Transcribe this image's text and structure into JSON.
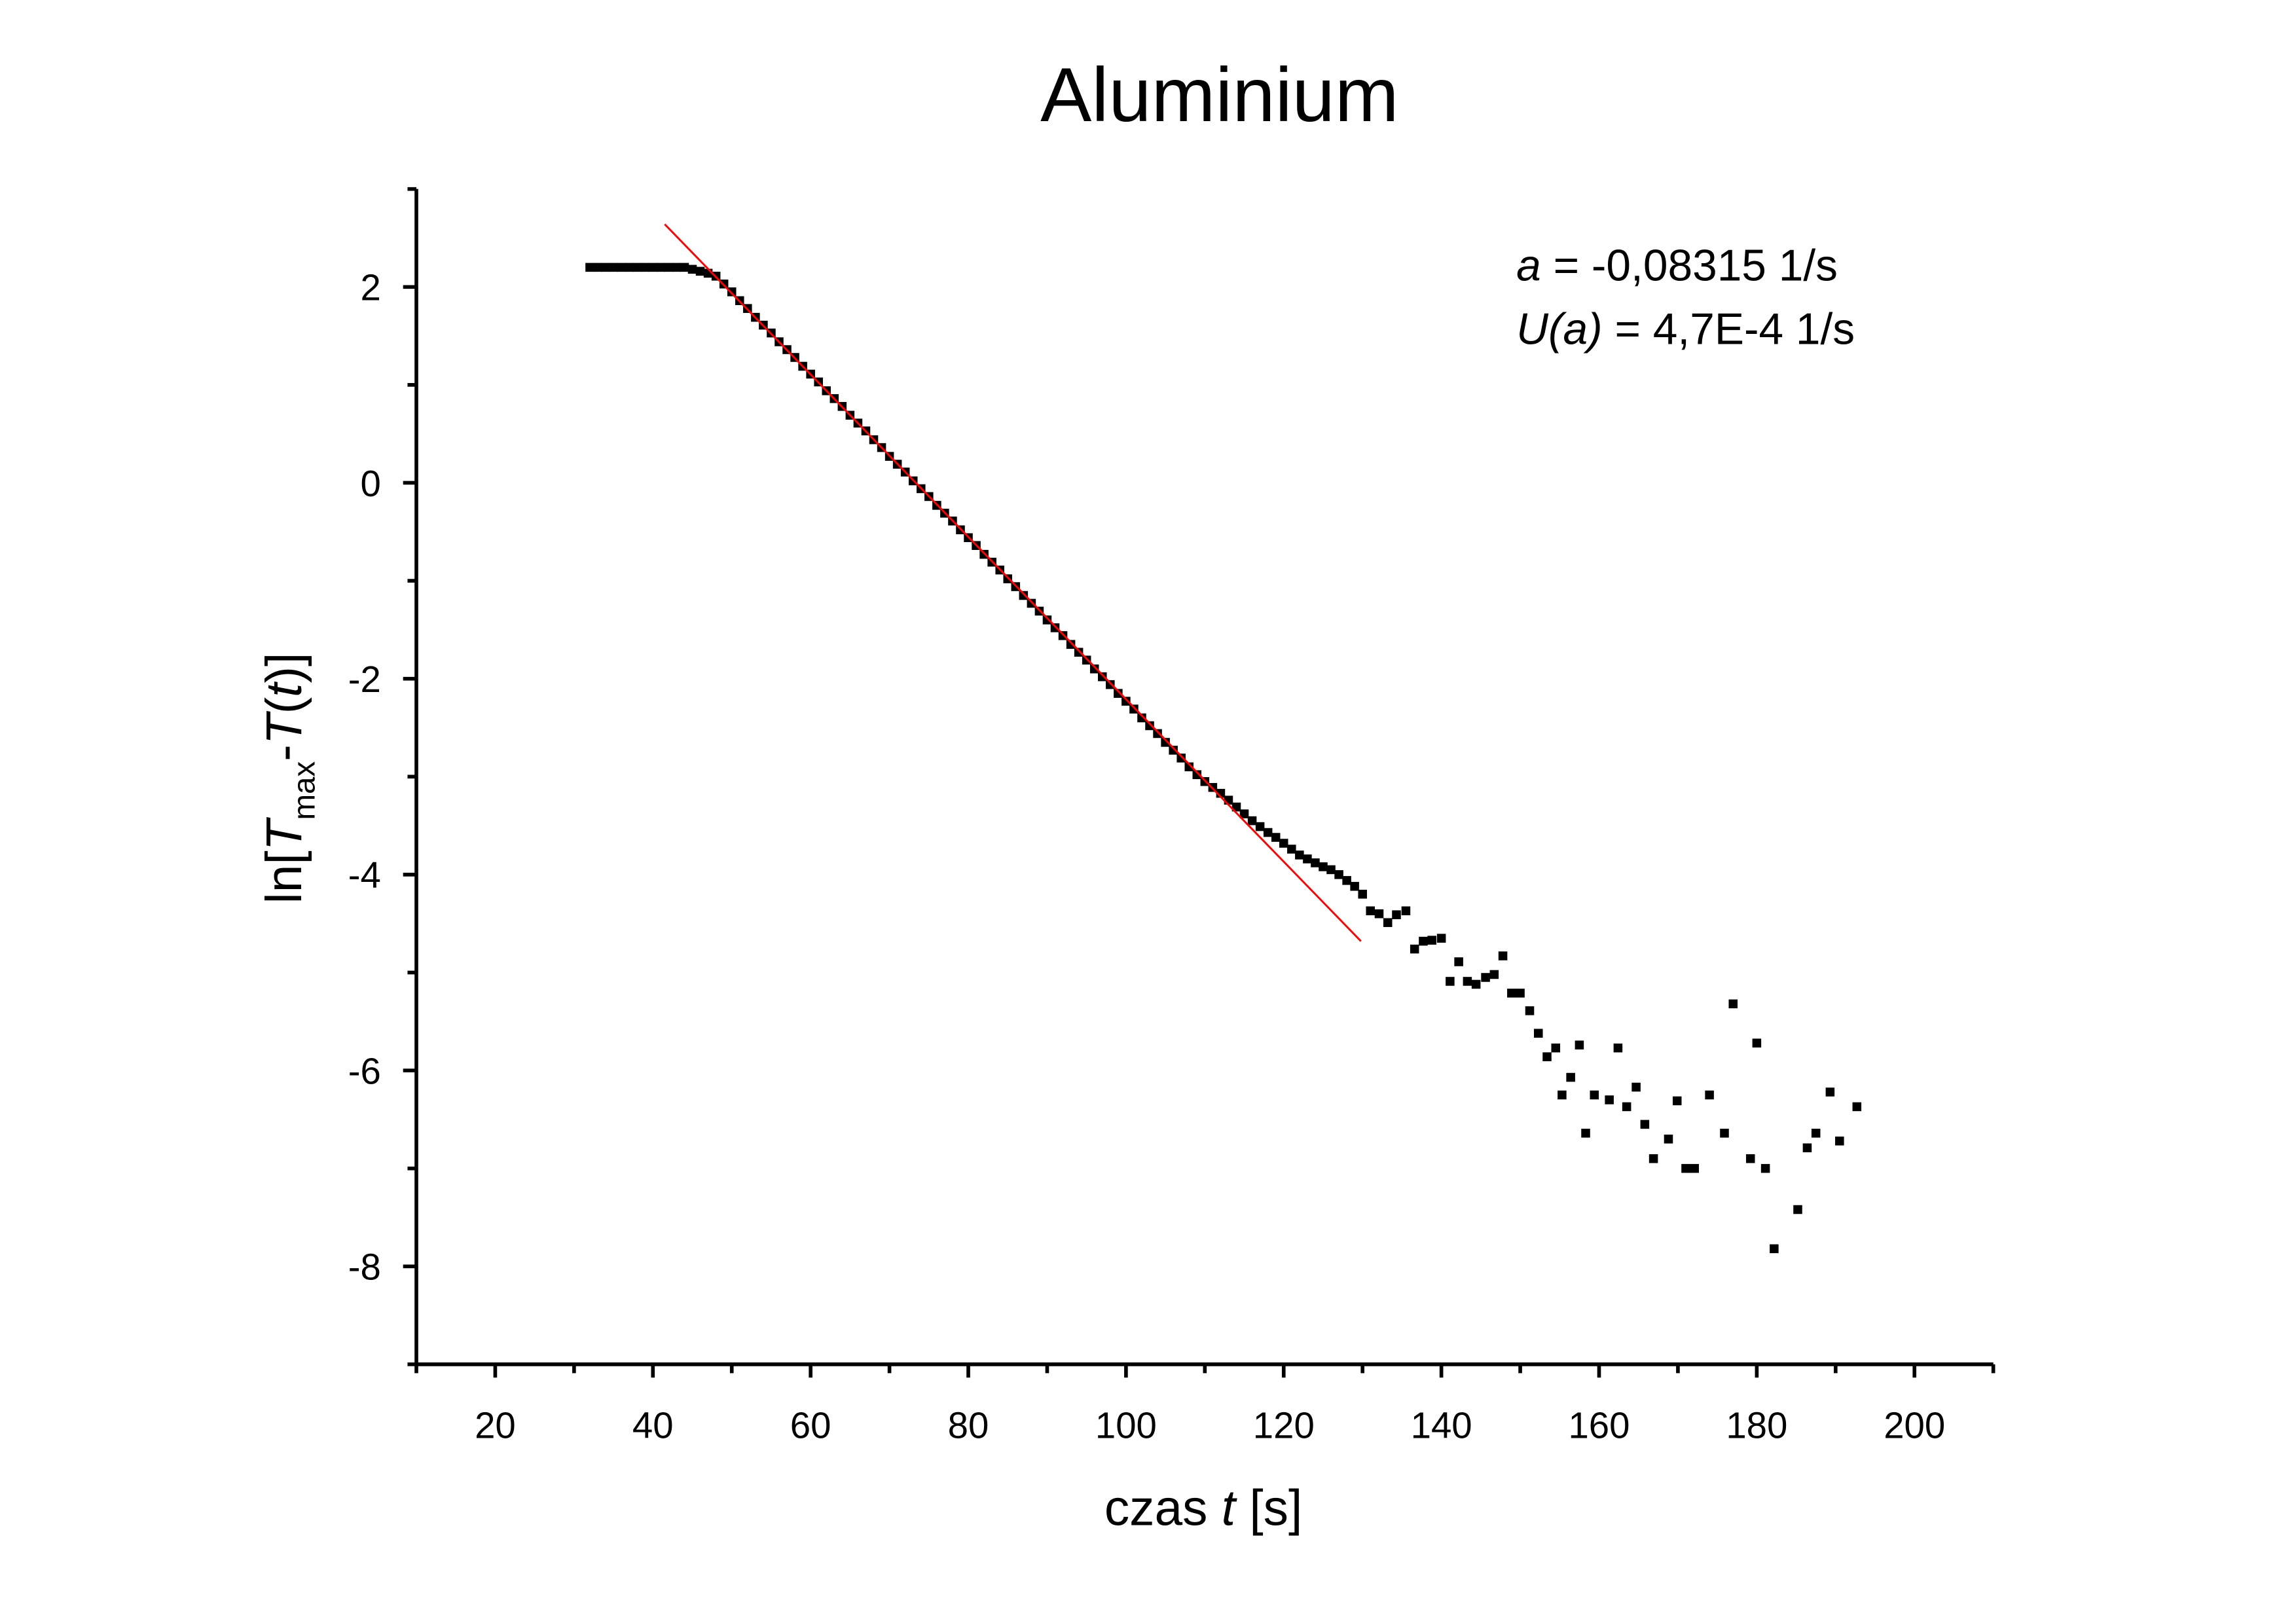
{
  "chart_data": {
    "type": "scatter",
    "title": "Aluminium",
    "x_label": [
      {
        "text": "czas ",
        "style": "normal"
      },
      {
        "text": "t",
        "style": "italic"
      },
      {
        "text": " [s]",
        "style": "normal"
      }
    ],
    "y_label": [
      {
        "text": "ln[",
        "style": "normal"
      },
      {
        "text": "T",
        "style": "italic"
      },
      {
        "text": "max",
        "style": "sub"
      },
      {
        "text": "-",
        "style": "normal"
      },
      {
        "text": "T",
        "style": "italic"
      },
      {
        "text": "(",
        "style": "normal"
      },
      {
        "text": "t",
        "style": "italic"
      },
      {
        "text": ")]",
        "style": "normal"
      }
    ],
    "annotations": [
      [
        {
          "text": "a",
          "style": "italic"
        },
        {
          "text": " = -0,08315 1/s",
          "style": "normal"
        }
      ],
      [
        {
          "text": "U(a)",
          "style": "italic"
        },
        {
          "text": " = 4,7E-4 1/s",
          "style": "normal"
        }
      ]
    ],
    "color": "#000000",
    "x": [
      32,
      33,
      34,
      35,
      36,
      37,
      38,
      39,
      40,
      41,
      42,
      43,
      44,
      45,
      46,
      47,
      48,
      49,
      50,
      51,
      52,
      53,
      54,
      55,
      56,
      57,
      58,
      59,
      60,
      61,
      62,
      63,
      64,
      65,
      66,
      67,
      68,
      69,
      70,
      71,
      72,
      73,
      74,
      75,
      76,
      77,
      78,
      79,
      80,
      81,
      82,
      83,
      84,
      85,
      86,
      87,
      88,
      89,
      90,
      91,
      92,
      93,
      94,
      95,
      96,
      97,
      98,
      99,
      100,
      101,
      102,
      103,
      104,
      105,
      106,
      107,
      108,
      109,
      110,
      111,
      112,
      113,
      114,
      115,
      116,
      117,
      118,
      119,
      120,
      121,
      122,
      123,
      124,
      125,
      126,
      127,
      128,
      129,
      130,
      131,
      132.1,
      133.2,
      134.3,
      135.5,
      136.6,
      137.7,
      138.8,
      140,
      141.1,
      142.2,
      143.3,
      144.4,
      145.6,
      146.7,
      147.8,
      148.9,
      150,
      151.2,
      152.3,
      153.4,
      154.5,
      155.3,
      156.4,
      157.5,
      158.3,
      159.4,
      161.3,
      162.4,
      163.5,
      164.7,
      165.8,
      166.9,
      168.8,
      169.9,
      171,
      172.1,
      174,
      175.9,
      177,
      179.2,
      180,
      181.1,
      182.2,
      185.2,
      186.4,
      187.5,
      189.3,
      190.5,
      192.7
    ],
    "values": [
      2.2,
      2.2,
      2.2,
      2.2,
      2.2,
      2.2,
      2.2,
      2.2,
      2.2,
      2.2,
      2.2,
      2.2,
      2.2,
      2.18,
      2.16,
      2.14,
      2.11,
      2.03,
      1.95,
      1.86,
      1.78,
      1.69,
      1.61,
      1.53,
      1.44,
      1.36,
      1.28,
      1.19,
      1.11,
      1.03,
      0.94,
      0.86,
      0.78,
      0.69,
      0.61,
      0.53,
      0.44,
      0.36,
      0.27,
      0.19,
      0.11,
      0.02,
      -0.06,
      -0.14,
      -0.23,
      -0.31,
      -0.39,
      -0.48,
      -0.56,
      -0.64,
      -0.73,
      -0.81,
      -0.89,
      -0.98,
      -1.06,
      -1.15,
      -1.23,
      -1.31,
      -1.4,
      -1.48,
      -1.56,
      -1.65,
      -1.73,
      -1.81,
      -1.9,
      -1.98,
      -2.06,
      -2.15,
      -2.23,
      -2.31,
      -2.4,
      -2.48,
      -2.56,
      -2.65,
      -2.73,
      -2.81,
      -2.9,
      -2.98,
      -3.05,
      -3.11,
      -3.17,
      -3.24,
      -3.31,
      -3.38,
      -3.45,
      -3.51,
      -3.57,
      -3.62,
      -3.68,
      -3.74,
      -3.8,
      -3.84,
      -3.88,
      -3.92,
      -3.95,
      -4.0,
      -4.06,
      -4.12,
      -4.2,
      -4.37,
      -4.4,
      -4.49,
      -4.41,
      -4.37,
      -4.76,
      -4.68,
      -4.67,
      -4.65,
      -5.09,
      -4.89,
      -5.09,
      -5.12,
      -5.05,
      -5.02,
      -4.83,
      -5.21,
      -5.21,
      -5.39,
      -5.62,
      -5.86,
      -5.77,
      -6.25,
      -6.07,
      -5.74,
      -6.64,
      -6.25,
      -6.3,
      -5.77,
      -6.37,
      -6.17,
      -6.55,
      -6.9,
      -6.7,
      -6.31,
      -7.0,
      -7.0,
      -6.25,
      -6.64,
      -5.32,
      -6.9,
      -5.72,
      -7.0,
      -7.82,
      -7.42,
      -6.79,
      -6.64,
      -6.22,
      -6.72,
      -6.37
    ],
    "fit": {
      "x": [
        41.5,
        129.8
      ],
      "values": [
        2.64,
        -4.68
      ],
      "color": "#ff0000"
    },
    "xlim": [
      10,
      210
    ],
    "ylim": [
      -9,
      3
    ],
    "xticks": [
      20,
      40,
      60,
      80,
      100,
      120,
      140,
      160,
      180,
      200
    ],
    "xminorticks": [
      10,
      30,
      50,
      70,
      90,
      110,
      130,
      150,
      170,
      190,
      210
    ],
    "yticks": [
      2,
      0,
      -2,
      -4,
      -6,
      -8
    ],
    "yminorticks": [
      3,
      1,
      -1,
      -3,
      -5,
      -7,
      -9
    ]
  }
}
